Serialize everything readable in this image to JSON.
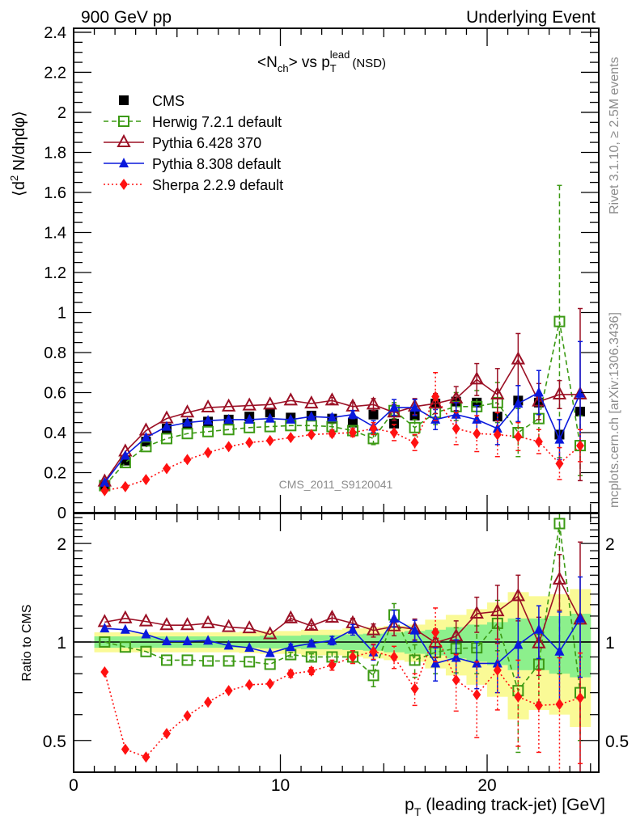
{
  "header": {
    "left": "900 GeV pp",
    "right": "Underlying Event"
  },
  "side_labels": {
    "rivet": "Rivet 3.1.10, ≥ 2.5M events",
    "mcplots": "mcplots.cern.ch [arXiv:1306.3436]"
  },
  "watermark": "CMS_2011_S9120041",
  "chart_data": [
    {
      "type": "line",
      "panel": "main",
      "title": "<N_ch> vs p_T^lead (NSD)",
      "title_parts": {
        "n": "<N",
        "ch": "ch",
        "vs": "> vs p",
        "T": "T",
        "lead": "lead",
        "nsd": "(NSD)"
      },
      "ylabel": "⟨d² N/dηdφ⟩",
      "ylabel_parts": {
        "pre": "⟨d",
        "sup": "2",
        "post": " N/dηdφ⟩"
      },
      "xlabel": "",
      "xlim": [
        0,
        25.4
      ],
      "ylim": [
        0,
        2.42
      ],
      "yticks": [
        0,
        0.2,
        0.4,
        0.6,
        0.8,
        1,
        1.2,
        1.4,
        1.6,
        1.8,
        2,
        2.2,
        2.4
      ],
      "ytick_labels": [
        "0",
        "0.2",
        "0.4",
        "0.6",
        "0.8",
        "1",
        "1.2",
        "1.4",
        "1.6",
        "1.8",
        "2",
        "2.2",
        "2.4"
      ],
      "legend_position": "top-left",
      "x": [
        1.5,
        2.5,
        3.5,
        4.5,
        5.5,
        6.5,
        7.5,
        8.5,
        9.5,
        10.5,
        11.5,
        12.5,
        13.5,
        14.5,
        15.5,
        16.5,
        17.5,
        18.5,
        19.5,
        20.5,
        21.5,
        22.5,
        23.5,
        24.5
      ],
      "series": [
        {
          "name": "CMS",
          "color": "#000000",
          "marker": "filled-square",
          "line": "none",
          "values": [
            0.135,
            0.26,
            0.355,
            0.42,
            0.445,
            0.455,
            0.465,
            0.48,
            0.5,
            0.475,
            0.485,
            0.47,
            0.45,
            0.49,
            0.445,
            0.485,
            0.545,
            0.555,
            0.55,
            0.48,
            0.56,
            0.55,
            0.39,
            0.505
          ],
          "errors": [
            0.005,
            0.005,
            0.005,
            0.005,
            0.005,
            0.005,
            0.005,
            0.005,
            0.005,
            0.005,
            0.005,
            0.005,
            0.005,
            0.005,
            0.005,
            0.005,
            0.005,
            0.005,
            0.005,
            0.005,
            0.005,
            0.005,
            0.005,
            0.005
          ]
        },
        {
          "name": "Herwig 7.2.1 default",
          "color": "#3c9a14",
          "marker": "open-square",
          "line": "dashed",
          "values": [
            0.135,
            0.25,
            0.33,
            0.37,
            0.395,
            0.405,
            0.415,
            0.425,
            0.43,
            0.435,
            0.435,
            0.43,
            0.41,
            0.37,
            0.51,
            0.425,
            0.5,
            0.53,
            0.53,
            0.55,
            0.4,
            0.47,
            0.955,
            0.335
          ],
          "errors": [
            0.005,
            0.005,
            0.005,
            0.005,
            0.005,
            0.005,
            0.005,
            0.005,
            0.005,
            0.01,
            0.01,
            0.015,
            0.02,
            0.03,
            0.04,
            0.04,
            0.06,
            0.07,
            0.08,
            0.1,
            0.12,
            0.12,
            0.68,
            0.15
          ]
        },
        {
          "name": "Pythia 6.428 370",
          "color": "#9b1025",
          "marker": "open-triangle",
          "line": "solid",
          "values": [
            0.155,
            0.305,
            0.41,
            0.47,
            0.5,
            0.525,
            0.53,
            0.535,
            0.54,
            0.56,
            0.545,
            0.56,
            0.53,
            0.54,
            0.5,
            0.53,
            0.545,
            0.57,
            0.665,
            0.59,
            0.765,
            0.555,
            0.59,
            0.59
          ],
          "errors": [
            0.005,
            0.005,
            0.005,
            0.005,
            0.005,
            0.005,
            0.005,
            0.005,
            0.005,
            0.01,
            0.01,
            0.015,
            0.02,
            0.03,
            0.04,
            0.04,
            0.05,
            0.06,
            0.08,
            0.13,
            0.13,
            0.09,
            0.07,
            0.43
          ]
        },
        {
          "name": "Pythia 8.308 default",
          "color": "#0a19dc",
          "marker": "filled-triangle",
          "line": "solid",
          "values": [
            0.15,
            0.285,
            0.375,
            0.43,
            0.45,
            0.46,
            0.465,
            0.465,
            0.47,
            0.465,
            0.48,
            0.475,
            0.49,
            0.43,
            0.525,
            0.525,
            0.465,
            0.49,
            0.465,
            0.42,
            0.545,
            0.6,
            0.365,
            0.595
          ],
          "errors": [
            0.005,
            0.005,
            0.005,
            0.005,
            0.005,
            0.005,
            0.005,
            0.005,
            0.005,
            0.01,
            0.01,
            0.015,
            0.02,
            0.03,
            0.04,
            0.04,
            0.05,
            0.06,
            0.07,
            0.08,
            0.09,
            0.11,
            0.1,
            0.26
          ]
        },
        {
          "name": "Sherpa 2.2.9 default",
          "color": "#ff1111",
          "marker": "filled-diamond",
          "line": "dotted",
          "values": [
            0.11,
            0.13,
            0.165,
            0.22,
            0.265,
            0.3,
            0.33,
            0.35,
            0.36,
            0.375,
            0.39,
            0.395,
            0.4,
            0.42,
            0.4,
            0.35,
            0.58,
            0.42,
            0.395,
            0.39,
            0.38,
            0.355,
            0.245,
            0.335
          ],
          "errors": [
            0.005,
            0.005,
            0.005,
            0.005,
            0.005,
            0.005,
            0.005,
            0.005,
            0.005,
            0.01,
            0.01,
            0.015,
            0.02,
            0.03,
            0.04,
            0.04,
            0.12,
            0.08,
            0.09,
            0.11,
            0.07,
            0.06,
            0.08,
            0.08
          ]
        }
      ]
    },
    {
      "type": "line",
      "panel": "ratio",
      "ylabel": "Ratio to CMS",
      "xlabel": "p_T (leading track-jet) [GeV]",
      "xlabel_parts": {
        "p": "p",
        "T": "T",
        "rest": " (leading track-jet) [GeV]"
      },
      "yscale": "log",
      "xlim": [
        0,
        25.4
      ],
      "ylim": [
        0.4,
        2.47
      ],
      "xticks": [
        0,
        10,
        20
      ],
      "xtick_labels": [
        "0",
        "10",
        "20"
      ],
      "yticks": [
        0.5,
        1,
        2
      ],
      "ytick_labels": [
        "0.5",
        "1",
        "2"
      ],
      "x": [
        1.5,
        2.5,
        3.5,
        4.5,
        5.5,
        6.5,
        7.5,
        8.5,
        9.5,
        10.5,
        11.5,
        12.5,
        13.5,
        14.5,
        15.5,
        16.5,
        17.5,
        18.5,
        19.5,
        20.5,
        21.5,
        22.5,
        23.5,
        24.5
      ],
      "band_inner": [
        0.04,
        0.04,
        0.04,
        0.04,
        0.04,
        0.04,
        0.04,
        0.04,
        0.045,
        0.045,
        0.05,
        0.05,
        0.055,
        0.06,
        0.07,
        0.08,
        0.09,
        0.11,
        0.13,
        0.15,
        0.18,
        0.18,
        0.2,
        0.22
      ],
      "band_outer": [
        0.07,
        0.07,
        0.07,
        0.07,
        0.07,
        0.07,
        0.07,
        0.075,
        0.08,
        0.08,
        0.09,
        0.09,
        0.1,
        0.11,
        0.12,
        0.13,
        0.17,
        0.21,
        0.26,
        0.32,
        0.42,
        0.38,
        0.4,
        0.45
      ],
      "band_colors": {
        "inner": "#8cf08c",
        "outer": "#fafa96"
      },
      "series": [
        {
          "name": "Herwig 7.2.1 default",
          "color": "#3c9a14",
          "marker": "open-square",
          "line": "dashed",
          "values": [
            1.0,
            0.965,
            0.935,
            0.88,
            0.88,
            0.875,
            0.875,
            0.87,
            0.855,
            0.915,
            0.9,
            0.9,
            0.9,
            0.79,
            1.21,
            0.88,
            0.93,
            0.955,
            0.96,
            1.14,
            0.71,
            0.855,
            2.3,
            0.7
          ],
          "errors": [
            0.01,
            0.01,
            0.01,
            0.01,
            0.01,
            0.01,
            0.01,
            0.01,
            0.01,
            0.015,
            0.02,
            0.03,
            0.04,
            0.06,
            0.1,
            0.1,
            0.13,
            0.15,
            0.16,
            0.2,
            0.25,
            0.2,
            1.5,
            0.2
          ]
        },
        {
          "name": "Pythia 6.428 370",
          "color": "#9b1025",
          "marker": "open-triangle",
          "line": "solid",
          "values": [
            1.15,
            1.18,
            1.155,
            1.125,
            1.125,
            1.14,
            1.11,
            1.1,
            1.055,
            1.18,
            1.12,
            1.185,
            1.14,
            1.085,
            1.115,
            1.095,
            0.995,
            1.04,
            1.22,
            1.24,
            1.38,
            0.99,
            1.55,
            1.17
          ],
          "errors": [
            0.01,
            0.01,
            0.01,
            0.01,
            0.01,
            0.01,
            0.01,
            0.01,
            0.01,
            0.02,
            0.02,
            0.03,
            0.04,
            0.05,
            0.07,
            0.08,
            0.1,
            0.12,
            0.15,
            0.25,
            0.22,
            0.2,
            0.3,
            0.85
          ]
        },
        {
          "name": "Pythia 8.308 default",
          "color": "#0a19dc",
          "marker": "filled-triangle",
          "line": "solid",
          "values": [
            1.1,
            1.09,
            1.055,
            1.005,
            1.005,
            1.01,
            0.975,
            0.96,
            0.925,
            0.965,
            0.99,
            1.01,
            1.09,
            0.93,
            1.18,
            1.085,
            0.86,
            0.895,
            0.86,
            0.86,
            0.98,
            1.09,
            0.935,
            1.18
          ],
          "errors": [
            0.01,
            0.01,
            0.01,
            0.01,
            0.01,
            0.01,
            0.01,
            0.01,
            0.01,
            0.02,
            0.02,
            0.03,
            0.04,
            0.05,
            0.07,
            0.08,
            0.1,
            0.12,
            0.14,
            0.16,
            0.2,
            0.2,
            0.3,
            0.4
          ]
        },
        {
          "name": "Sherpa 2.2.9 default",
          "color": "#ff1111",
          "marker": "filled-diamond",
          "line": "dotted",
          "values": [
            0.81,
            0.47,
            0.445,
            0.525,
            0.595,
            0.655,
            0.71,
            0.74,
            0.745,
            0.8,
            0.815,
            0.85,
            0.9,
            0.935,
            0.9,
            0.72,
            1.07,
            0.765,
            0.69,
            0.82,
            0.68,
            0.64,
            0.645,
            0.675
          ],
          "errors": [
            0.01,
            0.01,
            0.01,
            0.01,
            0.01,
            0.01,
            0.01,
            0.01,
            0.01,
            0.02,
            0.02,
            0.03,
            0.04,
            0.05,
            0.07,
            0.08,
            0.2,
            0.15,
            0.18,
            0.2,
            0.2,
            0.18,
            0.25,
            0.25
          ]
        }
      ]
    }
  ]
}
